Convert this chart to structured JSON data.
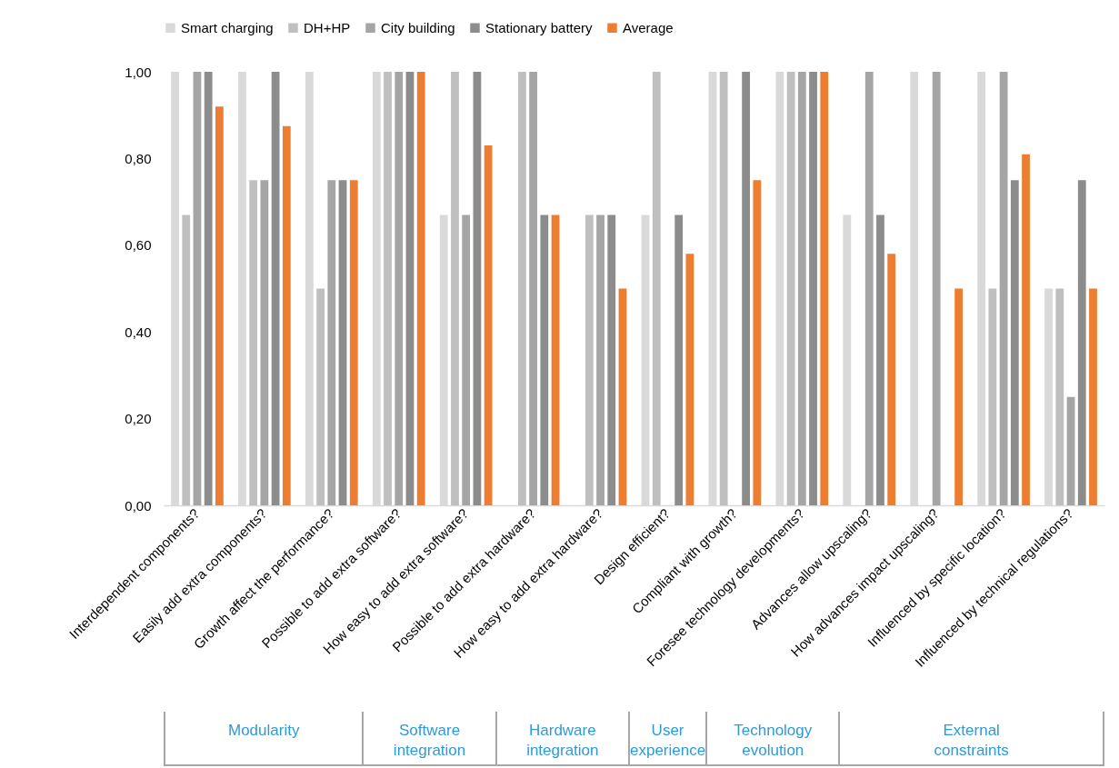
{
  "chart_data": {
    "type": "bar",
    "categories": [
      "Interdependent components?",
      "Easily add extra components?",
      "Growth affect the performance?",
      "Possible to add extra software?",
      "How easy to add extra software?",
      "Possible to add extra hardware?",
      "How easy to add extra hardware?",
      "Design efficient?",
      "Compliant with growth?",
      "Foresee technology developments?",
      "Advances allow upscaling?",
      "How advances impact upscaling?",
      "Influenced by specific location?",
      "Influenced by technical regulations?"
    ],
    "series": [
      {
        "name": "Smart charging",
        "color": "#d9d9d9",
        "values": [
          1,
          1,
          1,
          1,
          0.67,
          0,
          0,
          0.67,
          1,
          1,
          0.67,
          1,
          1,
          0.5
        ]
      },
      {
        "name": "DH+HP",
        "color": "#bfbfbf",
        "values": [
          0.67,
          0.75,
          0.5,
          1,
          1,
          1,
          0.67,
          1,
          1,
          1,
          0,
          0,
          0.5,
          0.5
        ]
      },
      {
        "name": "City building",
        "color": "#a5a5a5",
        "values": [
          1,
          0.75,
          0.75,
          1,
          0.67,
          1,
          0.67,
          0,
          0,
          1,
          1,
          1,
          1,
          0.25
        ]
      },
      {
        "name": "Stationary battery",
        "color": "#8c8c8c",
        "values": [
          1,
          1,
          0.75,
          1,
          1,
          0.67,
          0.67,
          0.67,
          1,
          1,
          0.67,
          0,
          0.75,
          0.75
        ]
      },
      {
        "name": "Average",
        "color": "#ed7d31",
        "values": [
          0.92,
          0.875,
          0.75,
          1,
          0.83,
          0.67,
          0.5,
          0.58,
          0.75,
          1,
          0.58,
          0.5,
          0.81,
          0.5
        ]
      }
    ],
    "ylim": [
      0,
      1
    ],
    "yticks": [
      {
        "value": 0,
        "label": "0,00"
      },
      {
        "value": 0.2,
        "label": "0,20"
      },
      {
        "value": 0.4,
        "label": "0,40"
      },
      {
        "value": 0.6,
        "label": "0,60"
      },
      {
        "value": 0.8,
        "label": "0,80"
      },
      {
        "value": 1,
        "label": "1,00"
      }
    ],
    "legend": "top",
    "annotations": [
      "Modularity",
      "Software integration",
      "Hardware integration",
      "User experience",
      "Technology evolution",
      "External constraints"
    ]
  }
}
